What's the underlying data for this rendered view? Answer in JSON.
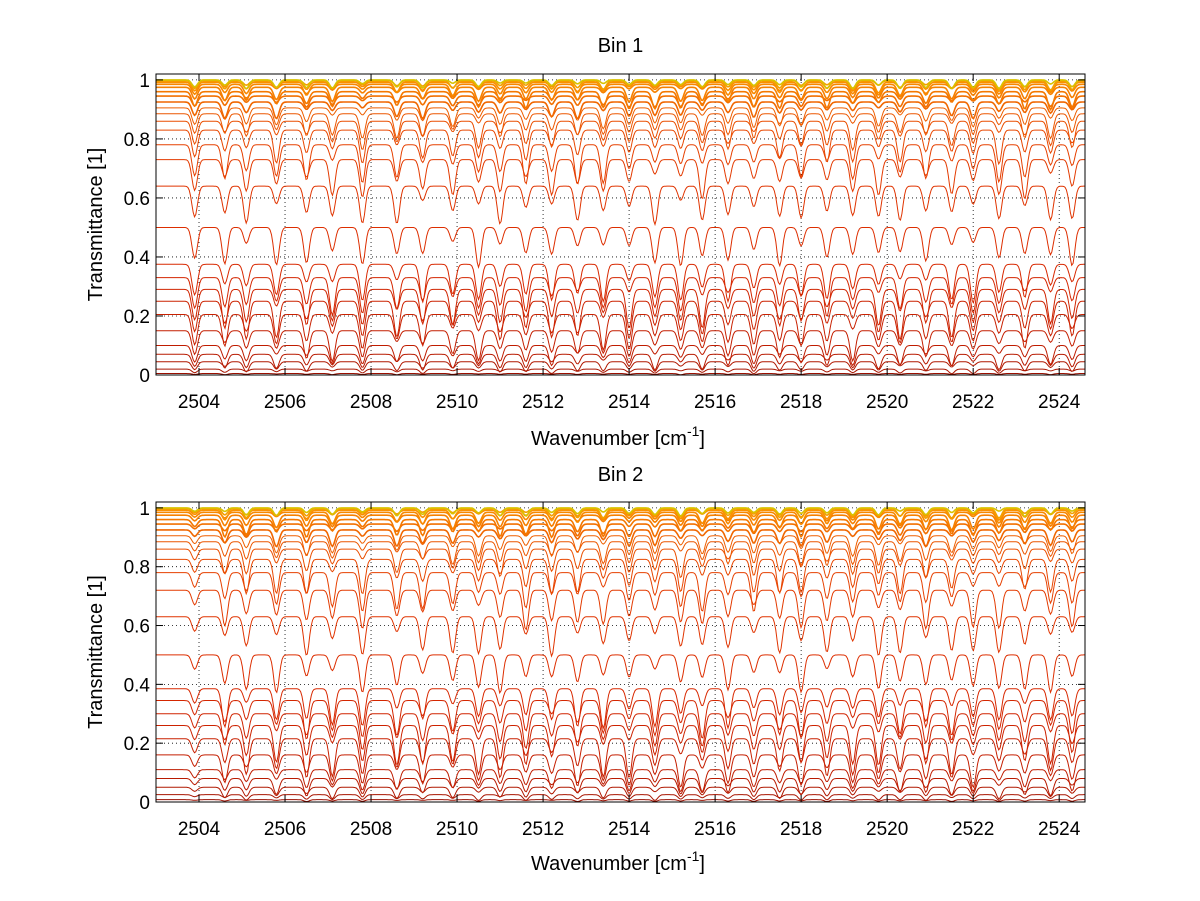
{
  "chart_data": [
    {
      "type": "line",
      "title": "Bin 1",
      "xlabel": "Wavenumber [cm",
      "xlabel_sup": "-1",
      "xlabel_end": "]",
      "ylabel": "Transmittance [1]",
      "xlim": [
        2503.0,
        2524.6
      ],
      "ylim": [
        0,
        1.02
      ],
      "xticks": [
        2504,
        2506,
        2508,
        2510,
        2512,
        2514,
        2516,
        2518,
        2520,
        2522,
        2524
      ],
      "yticks": [
        0,
        0.2,
        0.4,
        0.6,
        0.8,
        1
      ],
      "ytick_labels": [
        "0",
        "0.2",
        "0.4",
        "0.6",
        "0.8",
        "1"
      ],
      "grid": true,
      "line_centers": [
        2503.9,
        2504.6,
        2505.1,
        2505.8,
        2506.5,
        2507.1,
        2507.8,
        2508.6,
        2509.2,
        2509.9,
        2510.5,
        2511.0,
        2511.6,
        2512.2,
        2512.8,
        2513.4,
        2514.0,
        2514.6,
        2515.2,
        2515.7,
        2516.3,
        2516.9,
        2517.5,
        2518.0,
        2518.6,
        2519.2,
        2519.8,
        2520.3,
        2520.9,
        2521.5,
        2522.0,
        2522.6,
        2523.2,
        2523.8,
        2524.3
      ],
      "series_baselines": [
        0.0,
        0.005,
        0.02,
        0.045,
        0.07,
        0.1,
        0.15,
        0.205,
        0.25,
        0.29,
        0.33,
        0.375,
        0.5,
        0.64,
        0.73,
        0.78,
        0.83,
        0.86,
        0.885,
        0.905,
        0.925,
        0.945,
        0.96,
        0.975,
        0.985,
        0.992,
        0.997,
        1.0
      ],
      "series_colors": [
        "#8b0000",
        "#9a0f00",
        "#a81500",
        "#b01800",
        "#b81a00",
        "#bf1c00",
        "#c41e00",
        "#c82000",
        "#cc2200",
        "#d02400",
        "#d42600",
        "#d82800",
        "#dd2e00",
        "#e03400",
        "#e33a00",
        "#e64000",
        "#e84700",
        "#ea4f00",
        "#ec5700",
        "#ee5f00",
        "#f06700",
        "#f27000",
        "#f47800",
        "#f68000",
        "#f88800",
        "#fa9000",
        "#f2a000",
        "#d9c200"
      ]
    },
    {
      "type": "line",
      "title": "Bin 2",
      "xlabel": "Wavenumber [cm",
      "xlabel_sup": "-1",
      "xlabel_end": "]",
      "ylabel": "Transmittance [1]",
      "xlim": [
        2503.0,
        2524.6
      ],
      "ylim": [
        0,
        1.02
      ],
      "xticks": [
        2504,
        2506,
        2508,
        2510,
        2512,
        2514,
        2516,
        2518,
        2520,
        2522,
        2524
      ],
      "yticks": [
        0,
        0.2,
        0.4,
        0.6,
        0.8,
        1
      ],
      "ytick_labels": [
        "0",
        "0.2",
        "0.4",
        "0.6",
        "0.8",
        "1"
      ],
      "grid": true,
      "line_centers": [
        2503.9,
        2504.6,
        2505.1,
        2505.8,
        2506.5,
        2507.1,
        2507.8,
        2508.6,
        2509.2,
        2509.9,
        2510.5,
        2511.0,
        2511.6,
        2512.2,
        2512.8,
        2513.4,
        2514.0,
        2514.6,
        2515.2,
        2515.7,
        2516.3,
        2516.9,
        2517.5,
        2518.0,
        2518.6,
        2519.2,
        2519.8,
        2520.3,
        2520.9,
        2521.5,
        2522.0,
        2522.6,
        2523.2,
        2523.8,
        2524.3
      ],
      "series_baselines": [
        0.0,
        0.008,
        0.025,
        0.05,
        0.08,
        0.11,
        0.16,
        0.215,
        0.26,
        0.3,
        0.345,
        0.385,
        0.5,
        0.63,
        0.72,
        0.78,
        0.825,
        0.86,
        0.885,
        0.905,
        0.925,
        0.945,
        0.96,
        0.975,
        0.985,
        0.992,
        0.997,
        1.0
      ],
      "series_colors": [
        "#8b0000",
        "#9a0f00",
        "#a81500",
        "#b01800",
        "#b81a00",
        "#bf1c00",
        "#c41e00",
        "#c82000",
        "#cc2200",
        "#d02400",
        "#d42600",
        "#d82800",
        "#dd2e00",
        "#e03400",
        "#e33a00",
        "#e64000",
        "#e84700",
        "#ea4f00",
        "#ec5700",
        "#ee5f00",
        "#f06700",
        "#f27000",
        "#f47800",
        "#f68000",
        "#f88800",
        "#fa9000",
        "#f2a000",
        "#d9c200"
      ]
    }
  ]
}
